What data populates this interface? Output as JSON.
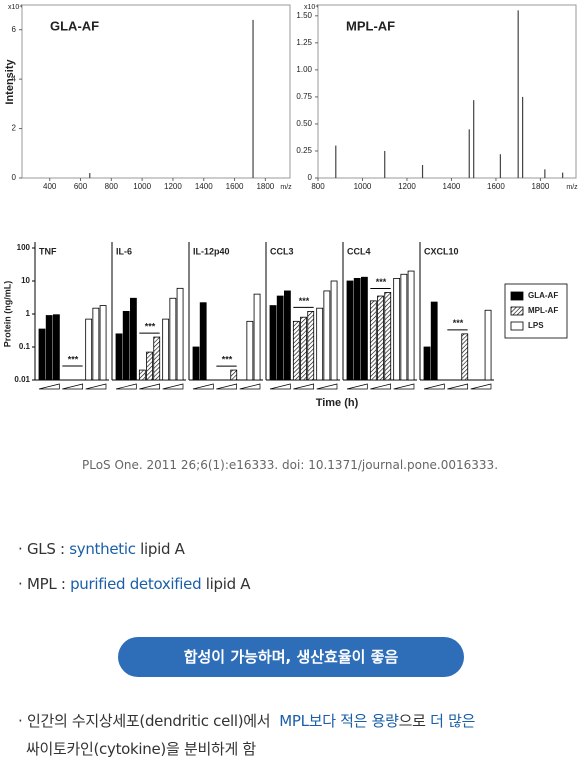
{
  "chart_data": [
    {
      "type": "stem",
      "title": "GLA-AF",
      "ylabel": "Intensity",
      "yscale_label": "x10⁴",
      "xlabel": "m/z",
      "x": [
        660,
        1720
      ],
      "values": [
        0.2,
        6.4
      ],
      "color": "#444444",
      "xlim": [
        220,
        1960
      ],
      "xticks": [
        400,
        600,
        800,
        1000,
        1200,
        1400,
        1600,
        1800
      ],
      "ylim": [
        0,
        7
      ],
      "yticks": [
        0,
        2,
        4,
        6
      ]
    },
    {
      "type": "stem",
      "title": "MPL-AF",
      "yscale_label": "x10⁴",
      "xlabel": "m/z",
      "x": [
        880,
        1100,
        1270,
        1480,
        1500,
        1620,
        1700,
        1720,
        1820,
        1900
      ],
      "values": [
        0.3,
        0.25,
        0.12,
        0.45,
        0.72,
        0.22,
        1.55,
        0.75,
        0.08,
        0.05
      ],
      "color": "#444444",
      "xlim": [
        800,
        1960
      ],
      "xticks": [
        800,
        1000,
        1200,
        1400,
        1600,
        1800
      ],
      "ylim": [
        0,
        1.6
      ],
      "yticks": [
        0,
        0.25,
        {
          "value": 0.5,
          "label": "0.50"
        },
        0.75,
        {
          "value": 1,
          "label": "1.00"
        },
        1.25,
        {
          "value": 1.5,
          "label": "1.50"
        }
      ]
    },
    {
      "type": "grouped_bar",
      "ylabel": "Protein (ng/mL)",
      "xlabel": "Time (h)",
      "log_scale": true,
      "ylim": [
        0.01,
        100
      ],
      "yticks": [
        0.01,
        0.1,
        1,
        10,
        100
      ],
      "series": [
        {
          "name": "GLA-AF",
          "color": "#000000"
        },
        {
          "name": "MPL-AF",
          "color": "#000000",
          "pattern": "hatch"
        },
        {
          "name": "LPS",
          "color": "#ffffff"
        }
      ],
      "panels": [
        {
          "title": "TNF",
          "annotation": "***",
          "values": [
            [
              0.35,
              0.9,
              0.95
            ],
            [
              null,
              null,
              null
            ],
            [
              0.7,
              1.5,
              1.8
            ]
          ]
        },
        {
          "title": "IL-6",
          "annotation": "***",
          "values": [
            [
              0.25,
              1.2,
              3
            ],
            [
              0.02,
              0.07,
              0.2
            ],
            [
              0.7,
              3,
              6
            ]
          ]
        },
        {
          "title": "IL-12p40",
          "annotation": "***",
          "values": [
            [
              0.1,
              2.2,
              null
            ],
            [
              null,
              null,
              0.02
            ],
            [
              null,
              0.6,
              4
            ]
          ]
        },
        {
          "title": "CCL3",
          "annotation": "***",
          "values": [
            [
              1.8,
              3.5,
              5
            ],
            [
              0.6,
              0.8,
              1.2
            ],
            [
              1.5,
              5,
              10
            ]
          ]
        },
        {
          "title": "CCL4",
          "annotation": "***",
          "values": [
            [
              10,
              12,
              13
            ],
            [
              2.5,
              3.5,
              4.5
            ],
            [
              12,
              16,
              20
            ]
          ]
        },
        {
          "title": "CXCL10",
          "annotation": "***",
          "values": [
            [
              0.1,
              2.3,
              null
            ],
            [
              null,
              null,
              0.25
            ],
            [
              null,
              null,
              1.3
            ]
          ]
        }
      ]
    }
  ],
  "citation": "PLoS One. 2011 26;6(1):e16333. doi: 10.1371/journal.pone.0016333.",
  "bullets": [
    {
      "parts": [
        {
          "text": "GLS : ",
          "color": "#333333"
        },
        {
          "text": "synthetic",
          "color": "#1a5fa8"
        },
        {
          "text": " lipid A",
          "color": "#333333"
        }
      ]
    },
    {
      "parts": [
        {
          "text": "MPL : ",
          "color": "#333333"
        },
        {
          "text": "purified detoxified",
          "color": "#1a5fa8"
        },
        {
          "text": " lipid A",
          "color": "#333333"
        }
      ]
    }
  ],
  "button": "합성이 가능하며, 생산효율이 좋음",
  "note": [
    {
      "parts": [
        {
          "text": "인간의 수지상세포(dendritic cell)에서  ",
          "color": "#333333"
        },
        {
          "text": "MPL보다 적은 용량",
          "color": "#1a5fa8"
        },
        {
          "text": "으로 ",
          "color": "#333333"
        },
        {
          "text": "더 많은",
          "color": "#1a5fa8"
        }
      ]
    },
    {
      "parts": [
        {
          "text": "싸이토카인(cytokine)을 분비하게 함",
          "color": "#333333"
        }
      ]
    }
  ]
}
